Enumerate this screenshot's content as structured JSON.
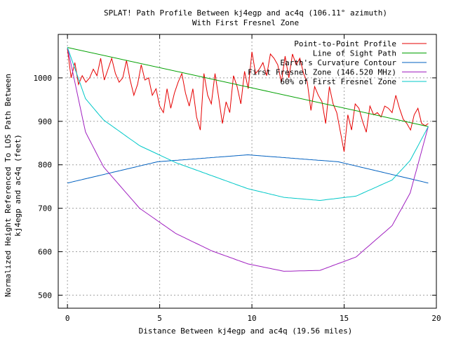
{
  "chart_data": {
    "type": "line",
    "title": "SPLAT! Path Profile Between kj4egp and ac4q (106.11° azimuth)",
    "subtitle": "With First Fresnel Zone",
    "xlabel": "Distance Between kj4egp and ac4q (19.56 miles)",
    "ylabel_line1": "Normalized Height Referenced To LOS Path Between",
    "ylabel_line2": "kj4egp and ac4q (feet)",
    "xlim": [
      -0.5,
      20
    ],
    "ylim": [
      470,
      1100
    ],
    "x_ticks": [
      0,
      5,
      10,
      15,
      20
    ],
    "y_ticks": [
      500,
      600,
      700,
      800,
      900,
      1000
    ],
    "grid": true,
    "legend_position": "top-right",
    "path_length_miles": 19.56,
    "series": [
      {
        "name": "Point-to-Point Profile",
        "color": "#e60000",
        "x": [
          0,
          0.2,
          0.4,
          0.6,
          0.8,
          1.0,
          1.2,
          1.4,
          1.6,
          1.8,
          2.0,
          2.2,
          2.4,
          2.6,
          2.8,
          3.0,
          3.2,
          3.4,
          3.6,
          3.8,
          4.0,
          4.2,
          4.4,
          4.6,
          4.8,
          5.0,
          5.2,
          5.4,
          5.6,
          5.8,
          6.0,
          6.2,
          6.4,
          6.6,
          6.8,
          7.0,
          7.2,
          7.4,
          7.6,
          7.8,
          8.0,
          8.2,
          8.4,
          8.6,
          8.8,
          9.0,
          9.2,
          9.4,
          9.6,
          9.8,
          10.0,
          10.2,
          10.4,
          10.6,
          10.8,
          11.0,
          11.2,
          11.4,
          11.6,
          11.8,
          12.0,
          12.2,
          12.4,
          12.6,
          12.8,
          13.0,
          13.2,
          13.4,
          13.6,
          13.8,
          14.0,
          14.2,
          14.4,
          14.6,
          14.8,
          15.0,
          15.2,
          15.4,
          15.6,
          15.8,
          16.0,
          16.2,
          16.4,
          16.6,
          16.8,
          17.0,
          17.2,
          17.4,
          17.6,
          17.8,
          18.0,
          18.2,
          18.4,
          18.6,
          18.8,
          19.0,
          19.2,
          19.4,
          19.56
        ],
        "y": [
          1067,
          1000,
          1035,
          985,
          1005,
          990,
          1000,
          1020,
          1005,
          1045,
          995,
          1020,
          1045,
          1010,
          990,
          1000,
          1040,
          995,
          960,
          985,
          1030,
          995,
          1000,
          960,
          975,
          935,
          920,
          975,
          930,
          965,
          990,
          1010,
          965,
          935,
          975,
          910,
          880,
          1010,
          960,
          940,
          1010,
          955,
          895,
          945,
          920,
          1005,
          980,
          940,
          1015,
          975,
          1060,
          1010,
          1020,
          1035,
          1005,
          1055,
          1045,
          1030,
          990,
          1050,
          1000,
          1055,
          1030,
          1045,
          1010,
          990,
          925,
          980,
          960,
          945,
          895,
          980,
          940,
          920,
          875,
          830,
          915,
          880,
          940,
          930,
          900,
          875,
          935,
          915,
          920,
          910,
          935,
          930,
          920,
          960,
          930,
          905,
          895,
          880,
          915,
          930,
          895,
          890,
          895
        ]
      },
      {
        "name": "Line of Sight Path",
        "color": "#00a000",
        "x": [
          0,
          19.56
        ],
        "y": [
          1070,
          888
        ]
      },
      {
        "name": "Earth's Curvature Contour",
        "color": "#0060c0",
        "curve": "arc",
        "x": [
          0,
          4.89,
          9.78,
          14.67,
          19.56
        ],
        "y": [
          758,
          807,
          823,
          807,
          758
        ]
      },
      {
        "name": "First Fresnel Zone (146.520 MHz)",
        "color": "#a020c0",
        "curve": "fresnel",
        "x": [
          0,
          0.98,
          1.96,
          3.91,
          5.87,
          7.82,
          9.78,
          11.74,
          13.69,
          15.65,
          17.6,
          18.58,
          19.56
        ],
        "y": [
          1070,
          875,
          795,
          700,
          642,
          602,
          572,
          555,
          557,
          588,
          660,
          735,
          888
        ]
      },
      {
        "name": "60% of First Fresnel Zone",
        "color": "#00c8c8",
        "curve": "fresnel",
        "x": [
          0,
          0.98,
          1.96,
          3.91,
          5.87,
          7.82,
          9.78,
          11.74,
          13.69,
          15.65,
          17.6,
          18.58,
          19.56
        ],
        "y": [
          1070,
          952,
          903,
          844,
          805,
          775,
          745,
          725,
          718,
          728,
          765,
          810,
          888
        ]
      }
    ]
  }
}
